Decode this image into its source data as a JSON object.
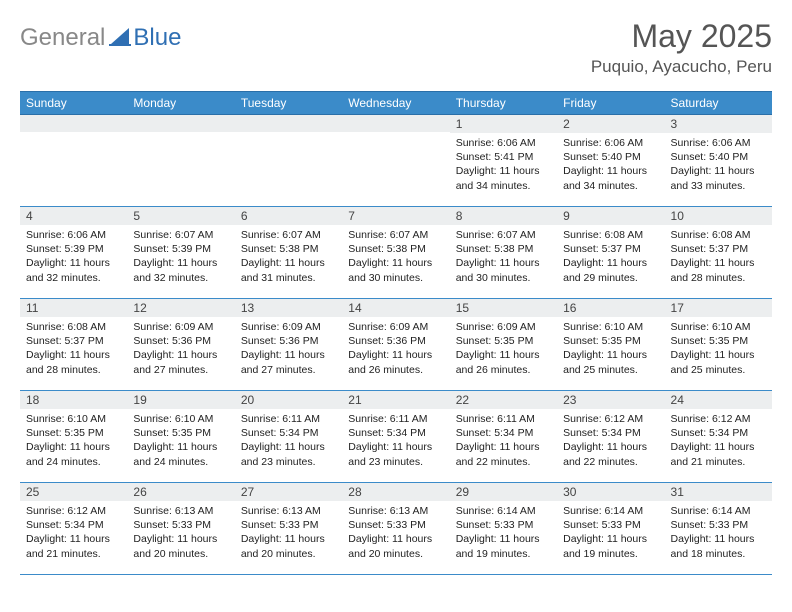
{
  "logo": {
    "gray": "General",
    "blue": "Blue"
  },
  "title": "May 2025",
  "location": "Puquio, Ayacucho, Peru",
  "colors": {
    "header_bg": "#3b8bc9",
    "header_border": "#2a6fa8",
    "daynum_bg": "#eceeef",
    "logo_blue": "#2f6fb3",
    "logo_gray": "#888888"
  },
  "weekdays": [
    "Sunday",
    "Monday",
    "Tuesday",
    "Wednesday",
    "Thursday",
    "Friday",
    "Saturday"
  ],
  "weeks": [
    [
      {
        "n": "",
        "l1": "",
        "l2": "",
        "l3": "",
        "l4": ""
      },
      {
        "n": "",
        "l1": "",
        "l2": "",
        "l3": "",
        "l4": ""
      },
      {
        "n": "",
        "l1": "",
        "l2": "",
        "l3": "",
        "l4": ""
      },
      {
        "n": "",
        "l1": "",
        "l2": "",
        "l3": "",
        "l4": ""
      },
      {
        "n": "1",
        "l1": "Sunrise: 6:06 AM",
        "l2": "Sunset: 5:41 PM",
        "l3": "Daylight: 11 hours",
        "l4": "and 34 minutes."
      },
      {
        "n": "2",
        "l1": "Sunrise: 6:06 AM",
        "l2": "Sunset: 5:40 PM",
        "l3": "Daylight: 11 hours",
        "l4": "and 34 minutes."
      },
      {
        "n": "3",
        "l1": "Sunrise: 6:06 AM",
        "l2": "Sunset: 5:40 PM",
        "l3": "Daylight: 11 hours",
        "l4": "and 33 minutes."
      }
    ],
    [
      {
        "n": "4",
        "l1": "Sunrise: 6:06 AM",
        "l2": "Sunset: 5:39 PM",
        "l3": "Daylight: 11 hours",
        "l4": "and 32 minutes."
      },
      {
        "n": "5",
        "l1": "Sunrise: 6:07 AM",
        "l2": "Sunset: 5:39 PM",
        "l3": "Daylight: 11 hours",
        "l4": "and 32 minutes."
      },
      {
        "n": "6",
        "l1": "Sunrise: 6:07 AM",
        "l2": "Sunset: 5:38 PM",
        "l3": "Daylight: 11 hours",
        "l4": "and 31 minutes."
      },
      {
        "n": "7",
        "l1": "Sunrise: 6:07 AM",
        "l2": "Sunset: 5:38 PM",
        "l3": "Daylight: 11 hours",
        "l4": "and 30 minutes."
      },
      {
        "n": "8",
        "l1": "Sunrise: 6:07 AM",
        "l2": "Sunset: 5:38 PM",
        "l3": "Daylight: 11 hours",
        "l4": "and 30 minutes."
      },
      {
        "n": "9",
        "l1": "Sunrise: 6:08 AM",
        "l2": "Sunset: 5:37 PM",
        "l3": "Daylight: 11 hours",
        "l4": "and 29 minutes."
      },
      {
        "n": "10",
        "l1": "Sunrise: 6:08 AM",
        "l2": "Sunset: 5:37 PM",
        "l3": "Daylight: 11 hours",
        "l4": "and 28 minutes."
      }
    ],
    [
      {
        "n": "11",
        "l1": "Sunrise: 6:08 AM",
        "l2": "Sunset: 5:37 PM",
        "l3": "Daylight: 11 hours",
        "l4": "and 28 minutes."
      },
      {
        "n": "12",
        "l1": "Sunrise: 6:09 AM",
        "l2": "Sunset: 5:36 PM",
        "l3": "Daylight: 11 hours",
        "l4": "and 27 minutes."
      },
      {
        "n": "13",
        "l1": "Sunrise: 6:09 AM",
        "l2": "Sunset: 5:36 PM",
        "l3": "Daylight: 11 hours",
        "l4": "and 27 minutes."
      },
      {
        "n": "14",
        "l1": "Sunrise: 6:09 AM",
        "l2": "Sunset: 5:36 PM",
        "l3": "Daylight: 11 hours",
        "l4": "and 26 minutes."
      },
      {
        "n": "15",
        "l1": "Sunrise: 6:09 AM",
        "l2": "Sunset: 5:35 PM",
        "l3": "Daylight: 11 hours",
        "l4": "and 26 minutes."
      },
      {
        "n": "16",
        "l1": "Sunrise: 6:10 AM",
        "l2": "Sunset: 5:35 PM",
        "l3": "Daylight: 11 hours",
        "l4": "and 25 minutes."
      },
      {
        "n": "17",
        "l1": "Sunrise: 6:10 AM",
        "l2": "Sunset: 5:35 PM",
        "l3": "Daylight: 11 hours",
        "l4": "and 25 minutes."
      }
    ],
    [
      {
        "n": "18",
        "l1": "Sunrise: 6:10 AM",
        "l2": "Sunset: 5:35 PM",
        "l3": "Daylight: 11 hours",
        "l4": "and 24 minutes."
      },
      {
        "n": "19",
        "l1": "Sunrise: 6:10 AM",
        "l2": "Sunset: 5:35 PM",
        "l3": "Daylight: 11 hours",
        "l4": "and 24 minutes."
      },
      {
        "n": "20",
        "l1": "Sunrise: 6:11 AM",
        "l2": "Sunset: 5:34 PM",
        "l3": "Daylight: 11 hours",
        "l4": "and 23 minutes."
      },
      {
        "n": "21",
        "l1": "Sunrise: 6:11 AM",
        "l2": "Sunset: 5:34 PM",
        "l3": "Daylight: 11 hours",
        "l4": "and 23 minutes."
      },
      {
        "n": "22",
        "l1": "Sunrise: 6:11 AM",
        "l2": "Sunset: 5:34 PM",
        "l3": "Daylight: 11 hours",
        "l4": "and 22 minutes."
      },
      {
        "n": "23",
        "l1": "Sunrise: 6:12 AM",
        "l2": "Sunset: 5:34 PM",
        "l3": "Daylight: 11 hours",
        "l4": "and 22 minutes."
      },
      {
        "n": "24",
        "l1": "Sunrise: 6:12 AM",
        "l2": "Sunset: 5:34 PM",
        "l3": "Daylight: 11 hours",
        "l4": "and 21 minutes."
      }
    ],
    [
      {
        "n": "25",
        "l1": "Sunrise: 6:12 AM",
        "l2": "Sunset: 5:34 PM",
        "l3": "Daylight: 11 hours",
        "l4": "and 21 minutes."
      },
      {
        "n": "26",
        "l1": "Sunrise: 6:13 AM",
        "l2": "Sunset: 5:33 PM",
        "l3": "Daylight: 11 hours",
        "l4": "and 20 minutes."
      },
      {
        "n": "27",
        "l1": "Sunrise: 6:13 AM",
        "l2": "Sunset: 5:33 PM",
        "l3": "Daylight: 11 hours",
        "l4": "and 20 minutes."
      },
      {
        "n": "28",
        "l1": "Sunrise: 6:13 AM",
        "l2": "Sunset: 5:33 PM",
        "l3": "Daylight: 11 hours",
        "l4": "and 20 minutes."
      },
      {
        "n": "29",
        "l1": "Sunrise: 6:14 AM",
        "l2": "Sunset: 5:33 PM",
        "l3": "Daylight: 11 hours",
        "l4": "and 19 minutes."
      },
      {
        "n": "30",
        "l1": "Sunrise: 6:14 AM",
        "l2": "Sunset: 5:33 PM",
        "l3": "Daylight: 11 hours",
        "l4": "and 19 minutes."
      },
      {
        "n": "31",
        "l1": "Sunrise: 6:14 AM",
        "l2": "Sunset: 5:33 PM",
        "l3": "Daylight: 11 hours",
        "l4": "and 18 minutes."
      }
    ]
  ]
}
